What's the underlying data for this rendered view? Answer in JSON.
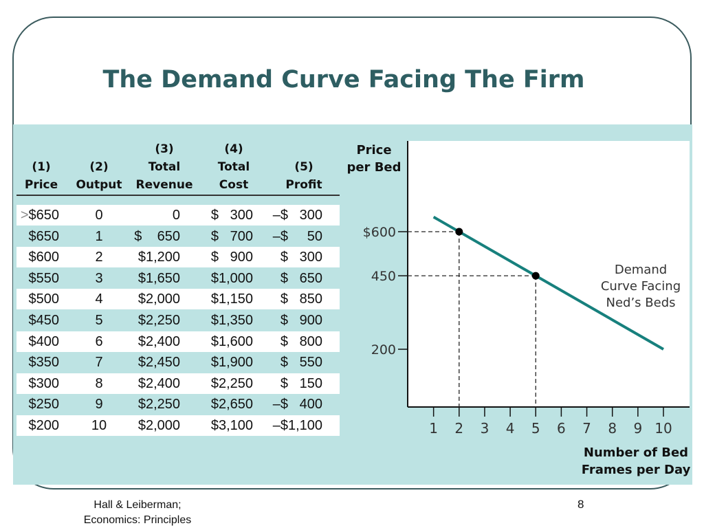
{
  "slide": {
    "title": "The Demand Curve Facing The Firm",
    "footer": {
      "line1": "Hall & Leiberman;",
      "line2": "Economics:  Principles",
      "page": "8"
    }
  },
  "table": {
    "headers": [
      {
        "n": "(1)",
        "line1": "",
        "line2": "Price"
      },
      {
        "n": "(2)",
        "line1": "",
        "line2": "Output"
      },
      {
        "n": "(3)",
        "line1": "Total",
        "line2": "Revenue"
      },
      {
        "n": "(4)",
        "line1": "Total",
        "line2": "Cost"
      },
      {
        "n": "(5)",
        "line1": "",
        "line2": "Profit"
      }
    ],
    "rows": [
      [
        "$650",
        "0",
        "0",
        "$   300",
        "–$   300"
      ],
      [
        "$650",
        "1",
        "$    650",
        "$   700",
        "–$     50"
      ],
      [
        "$600",
        "2",
        "$1,200",
        "$   900",
        "$   300"
      ],
      [
        "$550",
        "3",
        "$1,650",
        "$1,000",
        "$   650"
      ],
      [
        "$500",
        "4",
        "$2,000",
        "$1,150",
        "$   850"
      ],
      [
        "$450",
        "5",
        "$2,250",
        "$1,350",
        "$   900"
      ],
      [
        "$400",
        "6",
        "$2,400",
        "$1,600",
        "$   800"
      ],
      [
        "$350",
        "7",
        "$2,450",
        "$1,900",
        "$   550"
      ],
      [
        "$300",
        "8",
        "$2,400",
        "$2,250",
        "$   150"
      ],
      [
        "$250",
        "9",
        "$2,250",
        "$2,650",
        "–$   400"
      ],
      [
        "$200",
        "10",
        "$2,000",
        "$3,100",
        "–$1,100"
      ]
    ],
    "first_row_marker": ">"
  },
  "chart_data": {
    "type": "line",
    "ylabel": "Price per Bed",
    "xlabel": "Number of Bed Frames per Day",
    "curve_label": [
      "Demand",
      "Curve Facing",
      "Ned’s Beds"
    ],
    "x_ticks": [
      "1",
      "2",
      "3",
      "4",
      "5",
      "6",
      "7",
      "8",
      "9",
      "10"
    ],
    "y_ticks": [
      {
        "value": 600,
        "label": "$600"
      },
      {
        "value": 450,
        "label": "450"
      },
      {
        "value": 200,
        "label": "200"
      }
    ],
    "series": [
      {
        "values": [
          {
            "x": 1,
            "y": 650
          },
          {
            "x": 10,
            "y": 200
          }
        ]
      }
    ],
    "points": [
      {
        "x": 2,
        "y": 600
      },
      {
        "x": 5,
        "y": 450
      }
    ],
    "xlim": [
      0,
      11
    ],
    "grid": false,
    "color": "#17807d"
  }
}
